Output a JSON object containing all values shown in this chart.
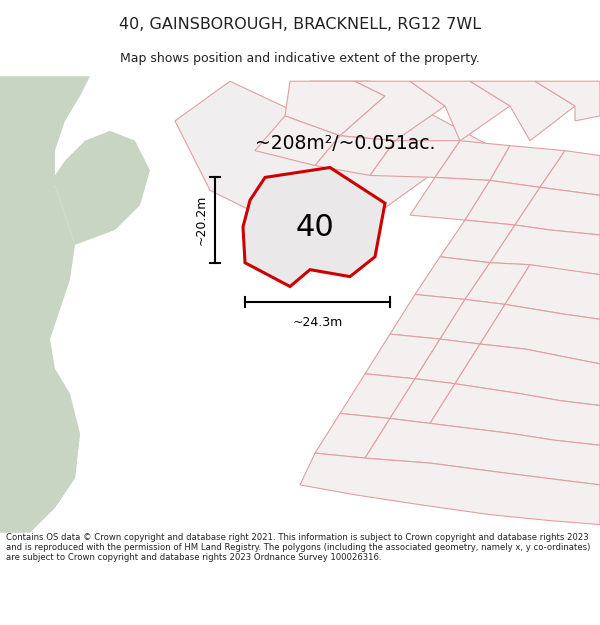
{
  "title": "40, GAINSBOROUGH, BRACKNELL, RG12 7WL",
  "subtitle": "Map shows position and indicative extent of the property.",
  "area_text": "~208m²/~0.051ac.",
  "width_label": "~24.3m",
  "height_label": "~20.2m",
  "number_label": "40",
  "footer_text": "Contains OS data © Crown copyright and database right 2021. This information is subject to Crown copyright and database rights 2023 and is reproduced with the permission of HM Land Registry. The polygons (including the associated geometry, namely x, y co-ordinates) are subject to Crown copyright and database rights 2023 Ordnance Survey 100026316.",
  "title_color": "#222222",
  "footer_color": "#222222",
  "green_color": "#c8d5c2",
  "plot_fill": "#e8e8e8",
  "plot_main_edge": "#cc0000",
  "plot_other_fill": "#f5f0f0",
  "plot_other_edge": "#e0a0a0",
  "map_bg": "#ffffff",
  "white_bg": "#ffffff"
}
